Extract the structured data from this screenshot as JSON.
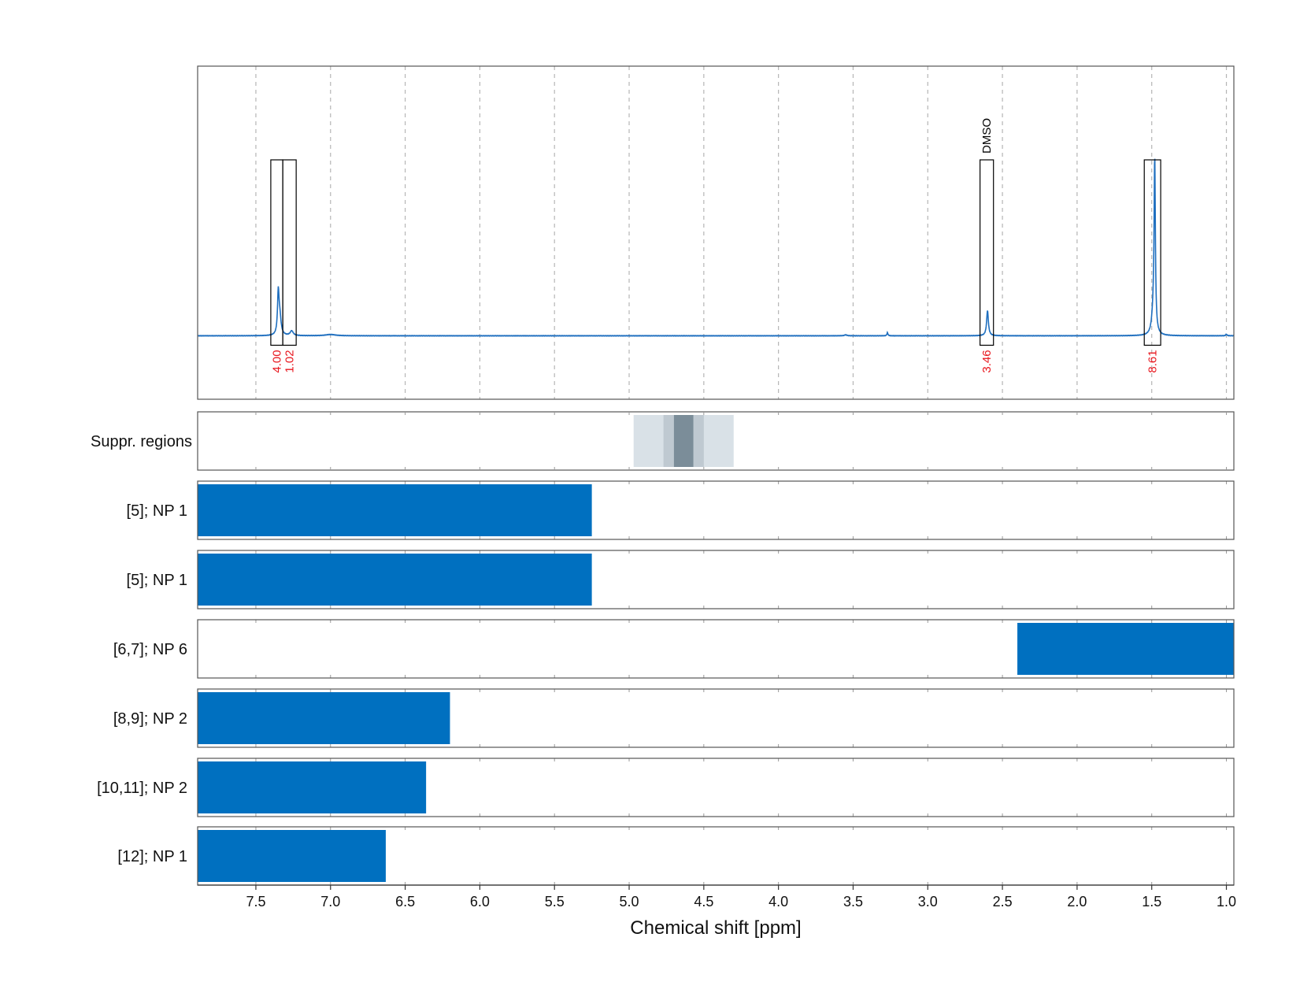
{
  "chart_data": {
    "type": "nmr-spectrum",
    "xlabel": "Chemical shift [ppm]",
    "xlim": [
      7.89,
      0.95
    ],
    "x_ticks": [
      "7.5",
      "7.0",
      "6.5",
      "6.0",
      "5.5",
      "5.0",
      "4.5",
      "4.0",
      "3.5",
      "3.0",
      "2.5",
      "2.0",
      "1.5",
      "1.0"
    ],
    "grid": "vertical dashed",
    "spectrum": {
      "color": "#1f6fbf",
      "baseline": 0,
      "ylim": [
        -0.4,
        1.7
      ],
      "peaks": [
        {
          "x": 7.35,
          "y": 0.25,
          "w": 0.006
        },
        {
          "x": 7.34,
          "y": 0.12,
          "w": 0.01
        },
        {
          "x": 7.26,
          "y": 0.03,
          "w": 0.012
        },
        {
          "x": 7.0,
          "y": 0.008,
          "w": 0.04
        },
        {
          "x": 3.55,
          "y": 0.006,
          "w": 0.01
        },
        {
          "x": 3.27,
          "y": 0.02,
          "w": 0.004
        },
        {
          "x": 2.6,
          "y": 0.16,
          "w": 0.007
        },
        {
          "x": 1.48,
          "y": 1.08,
          "w": 0.005
        },
        {
          "x": 1.49,
          "y": 0.12,
          "w": 0.012
        },
        {
          "x": 1.0,
          "y": 0.01,
          "w": 0.005
        }
      ]
    },
    "integration_regions": [
      {
        "x_from": 7.4,
        "x_to": 7.32,
        "integral": "4.00",
        "label": ""
      },
      {
        "x_from": 7.32,
        "x_to": 7.23,
        "integral": "1.02",
        "label": ""
      },
      {
        "x_from": 2.65,
        "x_to": 2.56,
        "integral": "3.46",
        "label": "DMSO"
      },
      {
        "x_from": 1.55,
        "x_to": 1.44,
        "integral": "8.61",
        "label": ""
      }
    ],
    "suppression": {
      "label": "Suppr. regions",
      "bands": [
        {
          "x_from": 4.97,
          "x_to": 4.3,
          "color": "#d9e1e7"
        },
        {
          "x_from": 4.77,
          "x_to": 4.5,
          "color": "#bfc9d1"
        },
        {
          "x_from": 4.7,
          "x_to": 4.57,
          "color": "#7b8d99"
        }
      ]
    },
    "bar_color": "#0070c0",
    "rows": [
      {
        "label": "[5]; NP 1",
        "x_from": 7.89,
        "x_to": 5.25
      },
      {
        "label": "[5]; NP 1",
        "x_from": 7.89,
        "x_to": 5.25
      },
      {
        "label": "[6,7]; NP 6",
        "x_from": 2.4,
        "x_to": 0.95
      },
      {
        "label": "[8,9]; NP 2",
        "x_from": 7.89,
        "x_to": 6.2
      },
      {
        "label": "[10,11]; NP 2",
        "x_from": 7.89,
        "x_to": 6.36
      },
      {
        "label": "[12]; NP 1",
        "x_from": 7.89,
        "x_to": 6.63
      }
    ]
  }
}
